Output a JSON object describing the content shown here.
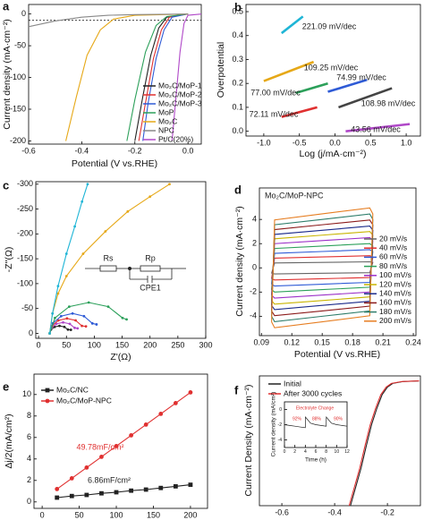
{
  "chart_data": [
    {
      "panel": "a",
      "type": "line",
      "xlabel": "Potential (V vs.RHE)",
      "ylabel": "Current density (mA·cm⁻²)",
      "xlim": [
        -0.6,
        0.05
      ],
      "ylim": [
        -205,
        15
      ],
      "xticks": [
        -0.6,
        -0.4,
        -0.2,
        {
          "value": 0,
          "label": "0.0"
        }
      ],
      "yticks": [
        0,
        -50,
        -100,
        -150,
        -200
      ],
      "hline": -10,
      "series": [
        {
          "name": "Mo₂C/MoP-1",
          "color": "#222222",
          "x": [
            -0.2,
            -0.17,
            -0.14,
            -0.11,
            -0.08,
            0.0
          ],
          "values": [
            -200,
            -130,
            -65,
            -22,
            -5,
            0
          ]
        },
        {
          "name": "Mo₂C/MoP-2",
          "color": "#e03030",
          "x": [
            -0.185,
            -0.16,
            -0.13,
            -0.1,
            -0.07,
            0.0
          ],
          "values": [
            -200,
            -140,
            -70,
            -25,
            -5,
            0
          ]
        },
        {
          "name": "Mo₂C/MoP-3",
          "color": "#2f5bd6",
          "x": [
            -0.17,
            -0.15,
            -0.12,
            -0.09,
            -0.06,
            0.0
          ],
          "values": [
            -200,
            -140,
            -70,
            -25,
            -5,
            0
          ]
        },
        {
          "name": "MoP",
          "color": "#2ca05a",
          "x": [
            -0.23,
            -0.2,
            -0.16,
            -0.12,
            -0.08,
            0.0
          ],
          "values": [
            -200,
            -135,
            -60,
            -18,
            -4,
            0
          ]
        },
        {
          "name": "Mo₂C",
          "color": "#e6a817",
          "x": [
            -0.46,
            -0.42,
            -0.38,
            -0.33,
            -0.28,
            -0.2,
            0.0
          ],
          "values": [
            -200,
            -130,
            -65,
            -25,
            -8,
            -2,
            0
          ]
        },
        {
          "name": "NPC",
          "color": "#888888",
          "x": [
            -0.6,
            -0.5,
            -0.4,
            -0.3,
            -0.2,
            0.0
          ],
          "values": [
            -20,
            -11,
            -5,
            -2,
            -1,
            0
          ]
        },
        {
          "name": "Pt/C(20%)",
          "color": "#b048c8",
          "x": [
            -0.06,
            -0.045,
            -0.03,
            -0.015,
            0.0,
            0.05
          ],
          "values": [
            -200,
            -130,
            -60,
            -15,
            -2,
            0
          ]
        }
      ]
    },
    {
      "panel": "b",
      "type": "line",
      "xlabel": "Log (j/mA·cm⁻²)",
      "ylabel": "Overpotential",
      "xlim": [
        -1.25,
        1.2
      ],
      "ylim": [
        -0.02,
        0.53
      ],
      "xticks": [
        {
          "value": -1,
          "label": "-1.0"
        },
        -0.5,
        {
          "value": 0,
          "label": "0.0"
        },
        0.5,
        {
          "value": 1,
          "label": "1.0"
        }
      ],
      "yticks": [
        {
          "value": 0,
          "label": "0.0"
        },
        0.1,
        0.2,
        0.3,
        0.4,
        0.5
      ],
      "series": [
        {
          "color": "#1fb5d6",
          "x": [
            -0.75,
            -0.45
          ],
          "values": [
            0.41,
            0.48
          ]
        },
        {
          "color": "#e6a817",
          "x": [
            -1.0,
            -0.3
          ],
          "values": [
            0.21,
            0.29
          ]
        },
        {
          "color": "#2ca05a",
          "x": [
            -0.55,
            -0.1
          ],
          "values": [
            0.16,
            0.2
          ]
        },
        {
          "color": "#2f5bd6",
          "x": [
            -0.1,
            0.45
          ],
          "values": [
            0.165,
            0.215
          ]
        },
        {
          "color": "#444444",
          "x": [
            0.05,
            0.8
          ],
          "values": [
            0.1,
            0.18
          ]
        },
        {
          "color": "#e03030",
          "x": [
            -0.75,
            -0.25
          ],
          "values": [
            0.06,
            0.1
          ]
        },
        {
          "color": "#b048c8",
          "x": [
            0.15,
            1.05
          ],
          "values": [
            0.0,
            0.03
          ]
        }
      ],
      "annotations": [
        {
          "text": "221.09 mV/dec",
          "color": "#222222"
        },
        {
          "text": "109.25 mV/dec",
          "color": "#222222"
        },
        {
          "text": "77.00 mV/dec",
          "color": "#222222"
        },
        {
          "text": "74.99 mV/dec",
          "color": "#222222"
        },
        {
          "text": "108.98 mV/dec",
          "color": "#222222"
        },
        {
          "text": "72.11 mV/dec",
          "color": "#222222"
        },
        {
          "text": "43.56 mV/dec",
          "color": "#222222"
        }
      ]
    },
    {
      "panel": "c",
      "type": "line",
      "xlabel": "Z'(Ω)",
      "ylabel": "-Z''(Ω)",
      "xlim": [
        -5,
        300
      ],
      "ylim": [
        10,
        -305
      ],
      "xticks": [
        0,
        50,
        100,
        150,
        200,
        250,
        300
      ],
      "yticks": [
        0,
        -50,
        -100,
        -150,
        -200,
        -250,
        -300
      ],
      "series": [
        {
          "color": "#222222",
          "marker": "circle",
          "x": [
            20,
            22.3,
            28.8,
            37.5,
            46.3,
            52.7,
            58
          ],
          "values": [
            0,
            -7.5,
            -13,
            -15,
            -13,
            -7.5,
            -7
          ]
        },
        {
          "color": "#b048c8",
          "marker": "circle",
          "x": [
            20,
            23.2,
            32,
            44,
            56,
            64.8,
            70
          ],
          "values": [
            0,
            -11,
            -19,
            -22,
            -19,
            -11,
            -10
          ]
        },
        {
          "color": "#e03030",
          "marker": "circle",
          "x": [
            20,
            24.2,
            35.5,
            51,
            66.5,
            77.8,
            85
          ],
          "values": [
            0,
            -15,
            -26,
            -30,
            -26,
            -15,
            -14
          ]
        },
        {
          "color": "#2f5bd6",
          "marker": "circle",
          "x": [
            20,
            25.5,
            40.5,
            61,
            81.5,
            96.5,
            104
          ],
          "values": [
            0,
            -20,
            -34.6,
            -40,
            -34.6,
            -20,
            -18
          ]
        },
        {
          "color": "#2ca05a",
          "marker": "circle",
          "x": [
            20,
            29.4,
            55,
            90,
            125,
            150.6,
            158
          ],
          "values": [
            0,
            -31,
            -53.7,
            -62,
            -53.7,
            -31,
            -28
          ]
        },
        {
          "color": "#e6a817",
          "marker": "circle",
          "x": [
            20,
            25,
            35,
            50,
            80,
            120,
            160,
            200,
            235
          ],
          "values": [
            0,
            -40,
            -80,
            -115,
            -160,
            -205,
            -245,
            -275,
            -300
          ]
        },
        {
          "color": "#1fb5d6",
          "marker": "circle",
          "x": [
            20,
            25,
            35,
            50,
            65,
            78,
            88
          ],
          "values": [
            0,
            -40,
            -95,
            -160,
            -215,
            -265,
            -300
          ]
        }
      ],
      "annotations": [
        {
          "text": "Rs",
          "color": "#222222"
        },
        {
          "text": "Rp",
          "color": "#222222"
        },
        {
          "text": "CPE1",
          "color": "#222222"
        }
      ]
    },
    {
      "panel": "d",
      "type": "line",
      "xlabel": "Potential (V vs.RHE)",
      "ylabel": "Current density (mA·cm⁻²)",
      "xlim": [
        0.088,
        0.2426
      ],
      "ylim": [
        -5.6,
        6.6
      ],
      "xticks": [
        0.09,
        0.12,
        0.15,
        0.18,
        0.21,
        0.24
      ],
      "yticks": [
        -4,
        -2,
        0,
        2,
        4
      ],
      "x": [
        0.1,
        0.103,
        0.15,
        0.197,
        0.2,
        0.197,
        0.15,
        0.103,
        0.1
      ],
      "series": [
        {
          "name": "20 mV/s",
          "color": "#666666",
          "values": [
            -0.45,
            0.4,
            0.45,
            0.5,
            0.45,
            -0.4,
            -0.45,
            -0.5,
            -0.45
          ]
        },
        {
          "name": "40 mV/s",
          "color": "#e03030",
          "values": [
            -0.9,
            0.8,
            0.9,
            1.0,
            0.9,
            -0.8,
            -0.9,
            -1.0,
            -0.9
          ]
        },
        {
          "name": "60 mV/s",
          "color": "#2f5bd6",
          "values": [
            -1.35,
            1.2,
            1.35,
            1.5,
            1.35,
            -1.2,
            -1.35,
            -1.5,
            -1.35
          ]
        },
        {
          "name": "80 mV/s",
          "color": "#2ca05a",
          "values": [
            -1.8,
            1.6,
            1.8,
            2.0,
            1.8,
            -1.6,
            -1.8,
            -2.0,
            -1.8
          ]
        },
        {
          "name": "100 mV/s",
          "color": "#9b30c8",
          "values": [
            -2.25,
            2.0,
            2.25,
            2.5,
            2.25,
            -2.0,
            -2.25,
            -2.5,
            -2.25
          ]
        },
        {
          "name": "120 mV/s",
          "color": "#c8b400",
          "values": [
            -2.7,
            2.4,
            2.7,
            3.0,
            2.7,
            -2.4,
            -2.7,
            -3.0,
            -2.7
          ]
        },
        {
          "name": "140 mV/s",
          "color": "#1a2a8a",
          "values": [
            -3.1,
            2.76,
            3.1,
            3.45,
            3.1,
            -2.76,
            -3.1,
            -3.45,
            -3.1
          ]
        },
        {
          "name": "160 mV/s",
          "color": "#8b1a1a",
          "values": [
            -3.56,
            3.16,
            3.56,
            3.95,
            3.56,
            -3.16,
            -3.56,
            -3.95,
            -3.56
          ]
        },
        {
          "name": "180 mV/s",
          "color": "#2e7d6a",
          "values": [
            -4.0,
            3.56,
            4.0,
            4.45,
            4.0,
            -3.56,
            -4.0,
            -4.45,
            -4.0
          ]
        },
        {
          "name": "200 mV/s",
          "color": "#e67e22",
          "values": [
            -4.46,
            3.96,
            4.46,
            4.95,
            4.46,
            -3.96,
            -4.46,
            -4.95,
            -4.46
          ]
        }
      ],
      "annotations": [
        {
          "text": "Mo₂C/MoP-NPC",
          "color": "#222222"
        }
      ]
    },
    {
      "panel": "e",
      "type": "line",
      "ylabel": "Δj/2(mA/cm²)",
      "xlim": [
        -11,
        223
      ],
      "ylim": [
        -0.6,
        11.9
      ],
      "xticks": [
        0,
        50,
        100,
        150,
        200
      ],
      "yticks": [
        0,
        2,
        4,
        6,
        8,
        10
      ],
      "x": [
        20,
        40,
        60,
        80,
        100,
        120,
        140,
        160,
        180,
        200
      ],
      "series": [
        {
          "name": "Mo₂C/NC",
          "color": "#222222",
          "marker": "square",
          "values": [
            0.4,
            0.55,
            0.65,
            0.8,
            0.9,
            1.05,
            1.15,
            1.3,
            1.45,
            1.6
          ]
        },
        {
          "name": "Mo₂C/MoP-NPC",
          "color": "#e03030",
          "marker": "circle",
          "values": [
            1.2,
            2.2,
            3.2,
            4.2,
            5.2,
            6.2,
            7.2,
            8.2,
            9.2,
            10.2
          ]
        }
      ],
      "annotations": [
        {
          "text": "49.78mF/cm²",
          "color": "#e03030"
        },
        {
          "text": "6.86mF/cm²",
          "color": "#222222"
        }
      ]
    },
    {
      "panel": "f",
      "type": "line",
      "ylabel": "Current Density (mA·cm⁻²)",
      "xlim": [
        -0.685,
        -0.075
      ],
      "ylim": [
        -100,
        4
      ],
      "xticks": [
        -0.6,
        -0.4,
        -0.2
      ],
      "series": [
        {
          "name": "Initial",
          "color": "#222222",
          "x": [
            -0.34,
            -0.32,
            -0.3,
            -0.28,
            -0.26,
            -0.24,
            -0.22,
            -0.2,
            -0.18,
            -0.14,
            -0.08
          ],
          "values": [
            -100,
            -85,
            -70,
            -52,
            -35,
            -22,
            -11,
            -5,
            -2,
            -0.5,
            0
          ]
        },
        {
          "name": "After 3000 cycles",
          "color": "#e03030",
          "x": [
            -0.345,
            -0.325,
            -0.305,
            -0.285,
            -0.265,
            -0.245,
            -0.225,
            -0.205,
            -0.185,
            -0.145,
            -0.08
          ],
          "values": [
            -100,
            -85,
            -70,
            -52,
            -35,
            -22,
            -11,
            -5,
            -2,
            -0.5,
            0
          ]
        }
      ],
      "inset": {
        "type": "line",
        "xlabel": "Time (h)",
        "ylabel": "Current density (mA/cm²)",
        "xlim": [
          0,
          12
        ],
        "ylim": [
          -5,
          1
        ],
        "xticks": [
          0,
          2,
          4,
          6,
          8,
          10,
          12
        ],
        "yticks": [
          -4,
          -2,
          0
        ],
        "series": [
          {
            "color": "#222222",
            "x": [
              0,
              1,
              2,
              3,
              4,
              4.02,
              5,
              6,
              7,
              8,
              8.02,
              9,
              10,
              11,
              12
            ],
            "values": [
              -2,
              -2.1,
              -2.2,
              -2.3,
              -2.4,
              -1.0,
              -1.8,
              -2.0,
              -2.1,
              -2.2,
              -1.0,
              -1.8,
              -2.0,
              -2.1,
              -2.2
            ]
          }
        ],
        "annotations": [
          {
            "text": "Electrolyte Change",
            "color": "#e03030"
          },
          {
            "text": "92%",
            "color": "#e03030"
          },
          {
            "text": "88%",
            "color": "#e03030"
          },
          {
            "text": "90%",
            "color": "#e03030"
          }
        ]
      }
    }
  ]
}
